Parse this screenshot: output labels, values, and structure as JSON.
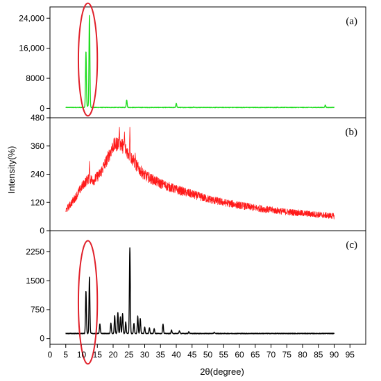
{
  "chart_data": {
    "type": "line",
    "xlabel": "2θ(degree)",
    "ylabel": "Intensity(%)",
    "xlim": [
      0,
      100
    ],
    "x_ticks": [
      "0",
      "5",
      "10",
      "15",
      "20",
      "25",
      "30",
      "35",
      "40",
      "45",
      "50",
      "55",
      "60",
      "65",
      "70",
      "75",
      "80",
      "85",
      "90",
      "95"
    ],
    "panels": [
      {
        "label": "(a)",
        "color": "#22dd22",
        "ylim": [
          -2500,
          27000
        ],
        "y_ticks": [
          {
            "value": 0,
            "label": "0"
          },
          {
            "value": 8000,
            "label": "8000"
          },
          {
            "value": 16000,
            "label": "16,000"
          },
          {
            "value": 24000,
            "label": "24,000"
          }
        ],
        "baseline": 250,
        "peaks": [
          {
            "x": 11.4,
            "y": 15200
          },
          {
            "x": 12.5,
            "y": 24800
          },
          {
            "x": 12.0,
            "y": 600
          },
          {
            "x": 24.3,
            "y": 2300
          },
          {
            "x": 40.0,
            "y": 1300
          },
          {
            "x": 45.5,
            "y": 350
          },
          {
            "x": 72.0,
            "y": 300
          },
          {
            "x": 87.2,
            "y": 900
          }
        ],
        "x_range": [
          5,
          90
        ],
        "highlight_ellipse": {
          "cx": 12.0,
          "cy": 13000,
          "rx": 3.0,
          "ry": 15000
        }
      },
      {
        "label": "(b)",
        "color": "#ff1a1a",
        "ylim": [
          0,
          480
        ],
        "y_ticks": [
          {
            "value": 0,
            "label": "0"
          },
          {
            "value": 120,
            "label": "120"
          },
          {
            "value": 240,
            "label": "240"
          },
          {
            "value": 360,
            "label": "360"
          },
          {
            "value": 480,
            "label": "480"
          }
        ],
        "envelope": [
          {
            "x": 5,
            "y": 85
          },
          {
            "x": 8,
            "y": 140
          },
          {
            "x": 10,
            "y": 185
          },
          {
            "x": 12,
            "y": 220
          },
          {
            "x": 14,
            "y": 215
          },
          {
            "x": 16,
            "y": 245
          },
          {
            "x": 18,
            "y": 300
          },
          {
            "x": 20,
            "y": 360
          },
          {
            "x": 22,
            "y": 375
          },
          {
            "x": 24,
            "y": 345
          },
          {
            "x": 26,
            "y": 305
          },
          {
            "x": 28,
            "y": 265
          },
          {
            "x": 30,
            "y": 235
          },
          {
            "x": 35,
            "y": 200
          },
          {
            "x": 40,
            "y": 175
          },
          {
            "x": 45,
            "y": 155
          },
          {
            "x": 50,
            "y": 135
          },
          {
            "x": 55,
            "y": 120
          },
          {
            "x": 60,
            "y": 108
          },
          {
            "x": 65,
            "y": 97
          },
          {
            "x": 70,
            "y": 88
          },
          {
            "x": 75,
            "y": 80
          },
          {
            "x": 80,
            "y": 74
          },
          {
            "x": 85,
            "y": 68
          },
          {
            "x": 90,
            "y": 62
          }
        ],
        "spikes": [
          {
            "x": 12.5,
            "y": 295
          },
          {
            "x": 22.0,
            "y": 440
          },
          {
            "x": 23.6,
            "y": 420
          },
          {
            "x": 25.3,
            "y": 440
          },
          {
            "x": 27.0,
            "y": 330
          },
          {
            "x": 36.0,
            "y": 200
          }
        ],
        "x_range": [
          5,
          90
        ]
      },
      {
        "label": "(c)",
        "color": "#000000",
        "ylim": [
          -150,
          2800
        ],
        "y_ticks": [
          {
            "value": 0,
            "label": "0"
          },
          {
            "value": 750,
            "label": "750"
          },
          {
            "value": 1500,
            "label": "1500"
          },
          {
            "value": 2250,
            "label": "2250"
          }
        ],
        "baseline": 130,
        "peaks": [
          {
            "x": 11.4,
            "y": 1230
          },
          {
            "x": 12.5,
            "y": 1600
          },
          {
            "x": 15.8,
            "y": 380
          },
          {
            "x": 19.3,
            "y": 400
          },
          {
            "x": 20.5,
            "y": 600
          },
          {
            "x": 21.5,
            "y": 680
          },
          {
            "x": 22.3,
            "y": 560
          },
          {
            "x": 23.0,
            "y": 650
          },
          {
            "x": 24.0,
            "y": 430
          },
          {
            "x": 25.3,
            "y": 2350
          },
          {
            "x": 26.6,
            "y": 400
          },
          {
            "x": 27.8,
            "y": 580
          },
          {
            "x": 28.6,
            "y": 520
          },
          {
            "x": 30.0,
            "y": 300
          },
          {
            "x": 31.5,
            "y": 280
          },
          {
            "x": 33.0,
            "y": 260
          },
          {
            "x": 35.8,
            "y": 380
          },
          {
            "x": 38.5,
            "y": 220
          },
          {
            "x": 41.0,
            "y": 200
          },
          {
            "x": 44.0,
            "y": 180
          },
          {
            "x": 52.0,
            "y": 160
          }
        ],
        "x_range": [
          5,
          90
        ],
        "highlight_ellipse": {
          "cx": 12.0,
          "cy": 940,
          "rx": 3.0,
          "ry": 1600
        }
      }
    ],
    "highlight_color": "#e0202a"
  }
}
